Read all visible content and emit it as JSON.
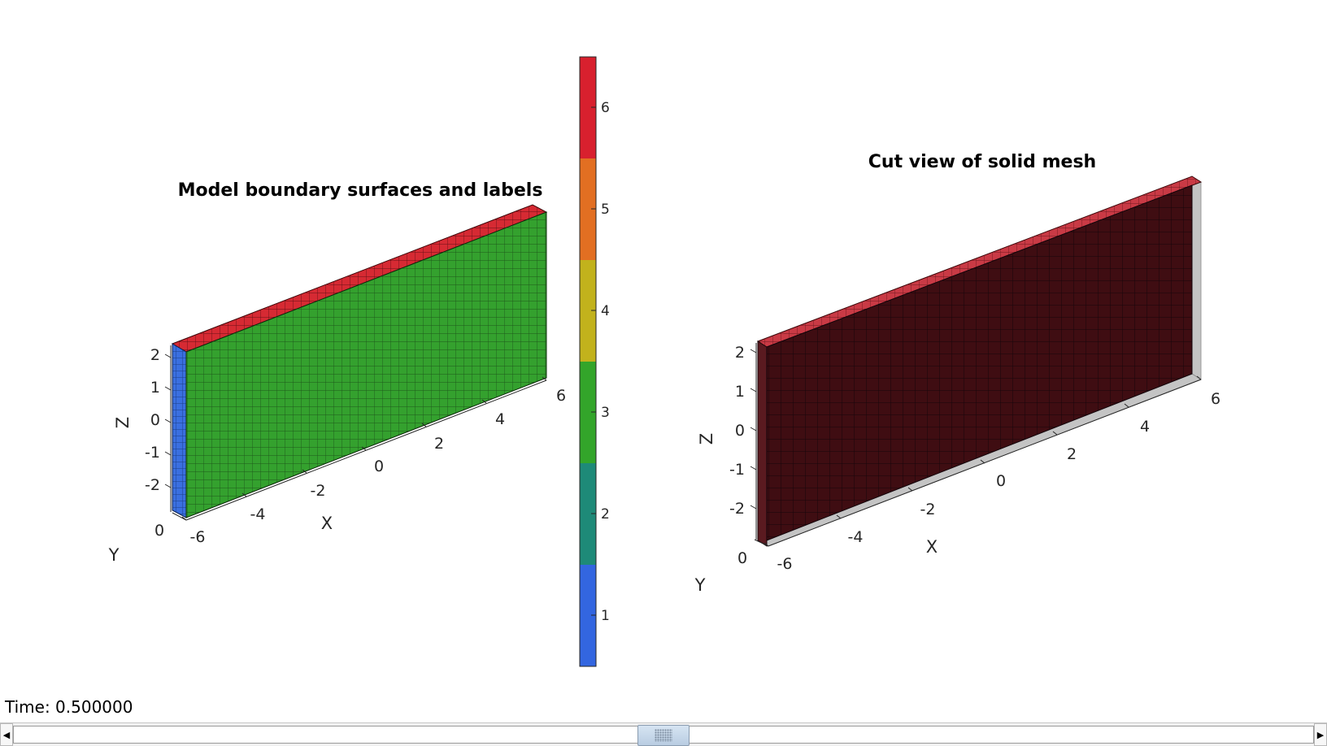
{
  "left_plot": {
    "title": "Model boundary surfaces and labels",
    "xlabel": "X",
    "ylabel": "Y",
    "zlabel": "Z",
    "x_ticks": [
      "-6",
      "-4",
      "-2",
      "0",
      "2",
      "4",
      "6"
    ],
    "y_ticks": [
      "0"
    ],
    "z_ticks": [
      "2",
      "1",
      "0",
      "-1",
      "-2"
    ],
    "face_colors": {
      "top": "#d62a33",
      "front": "#34a12e",
      "side": "#3a6fe0"
    }
  },
  "right_plot": {
    "title": "Cut view of solid mesh",
    "xlabel": "X",
    "ylabel": "Y",
    "zlabel": "Z",
    "x_ticks": [
      "-6",
      "-4",
      "-2",
      "0",
      "2",
      "4",
      "6"
    ],
    "y_ticks": [
      "0"
    ],
    "z_ticks": [
      "2",
      "1",
      "0",
      "-1",
      "-2"
    ],
    "face_colors": {
      "top": "#c93a45",
      "front": "#3f0d12",
      "side": "#5a1a20",
      "shadow": "#c4c4c4"
    }
  },
  "colorbar": {
    "ticks": [
      "1",
      "2",
      "3",
      "4",
      "5",
      "6"
    ],
    "colors": [
      "#3366e0",
      "#1e8a78",
      "#33a52a",
      "#c2b21c",
      "#e26f22",
      "#d8202e"
    ]
  },
  "status": {
    "time_text": "Time: 0.500000"
  },
  "scrollbar": {
    "left_arrow": "◀",
    "right_arrow": "▶",
    "position": 0.5
  }
}
